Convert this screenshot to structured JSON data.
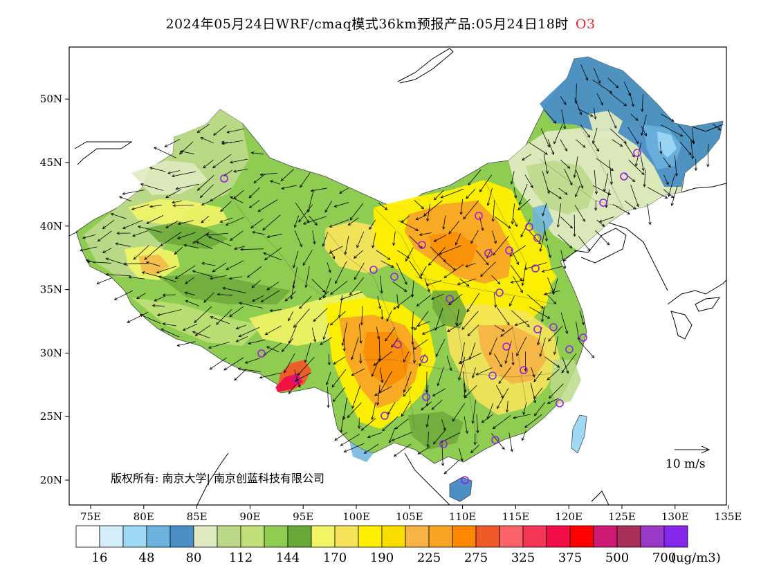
{
  "title": {
    "main": "2024年05月24日WRF/cmaq模式36km预报产品:05月24日18时",
    "variable": "O3",
    "variable_color": "#e8242b"
  },
  "map": {
    "lon_range": [
      73,
      135
    ],
    "lat_range": [
      18,
      54
    ],
    "x_ticks": [
      "75E",
      "80E",
      "85E",
      "90E",
      "95E",
      "100E",
      "105E",
      "110E",
      "115E",
      "120E",
      "125E",
      "130E",
      "135E"
    ],
    "y_ticks": [
      "20N",
      "25N",
      "30N",
      "35N",
      "40N",
      "45N",
      "50N"
    ],
    "copyright": "版权所有: 南京大学| 南京创蓝科技有限公司",
    "wind_reference": "10 m/s"
  },
  "colorbar": {
    "colors": [
      "#ffffff",
      "#d5eefb",
      "#9ed9f5",
      "#6cb3df",
      "#4b8fc6",
      "#dfeac0",
      "#bcd98a",
      "#c2e07a",
      "#8fcc52",
      "#6aa83a",
      "#f2f466",
      "#f5e45a",
      "#ffef00",
      "#f9de00",
      "#f6b445",
      "#f8a526",
      "#fb8800",
      "#f05a28",
      "#fc6368",
      "#f53656",
      "#f10d46",
      "#fe0000",
      "#cf1a73",
      "#a83058",
      "#9a38c8",
      "#8427ea"
    ],
    "labels": [
      "16",
      "48",
      "80",
      "112",
      "144",
      "170",
      "190",
      "225",
      "275",
      "325",
      "375",
      "500",
      "700"
    ],
    "unit": "(ug/m3)"
  },
  "stations": 32
}
